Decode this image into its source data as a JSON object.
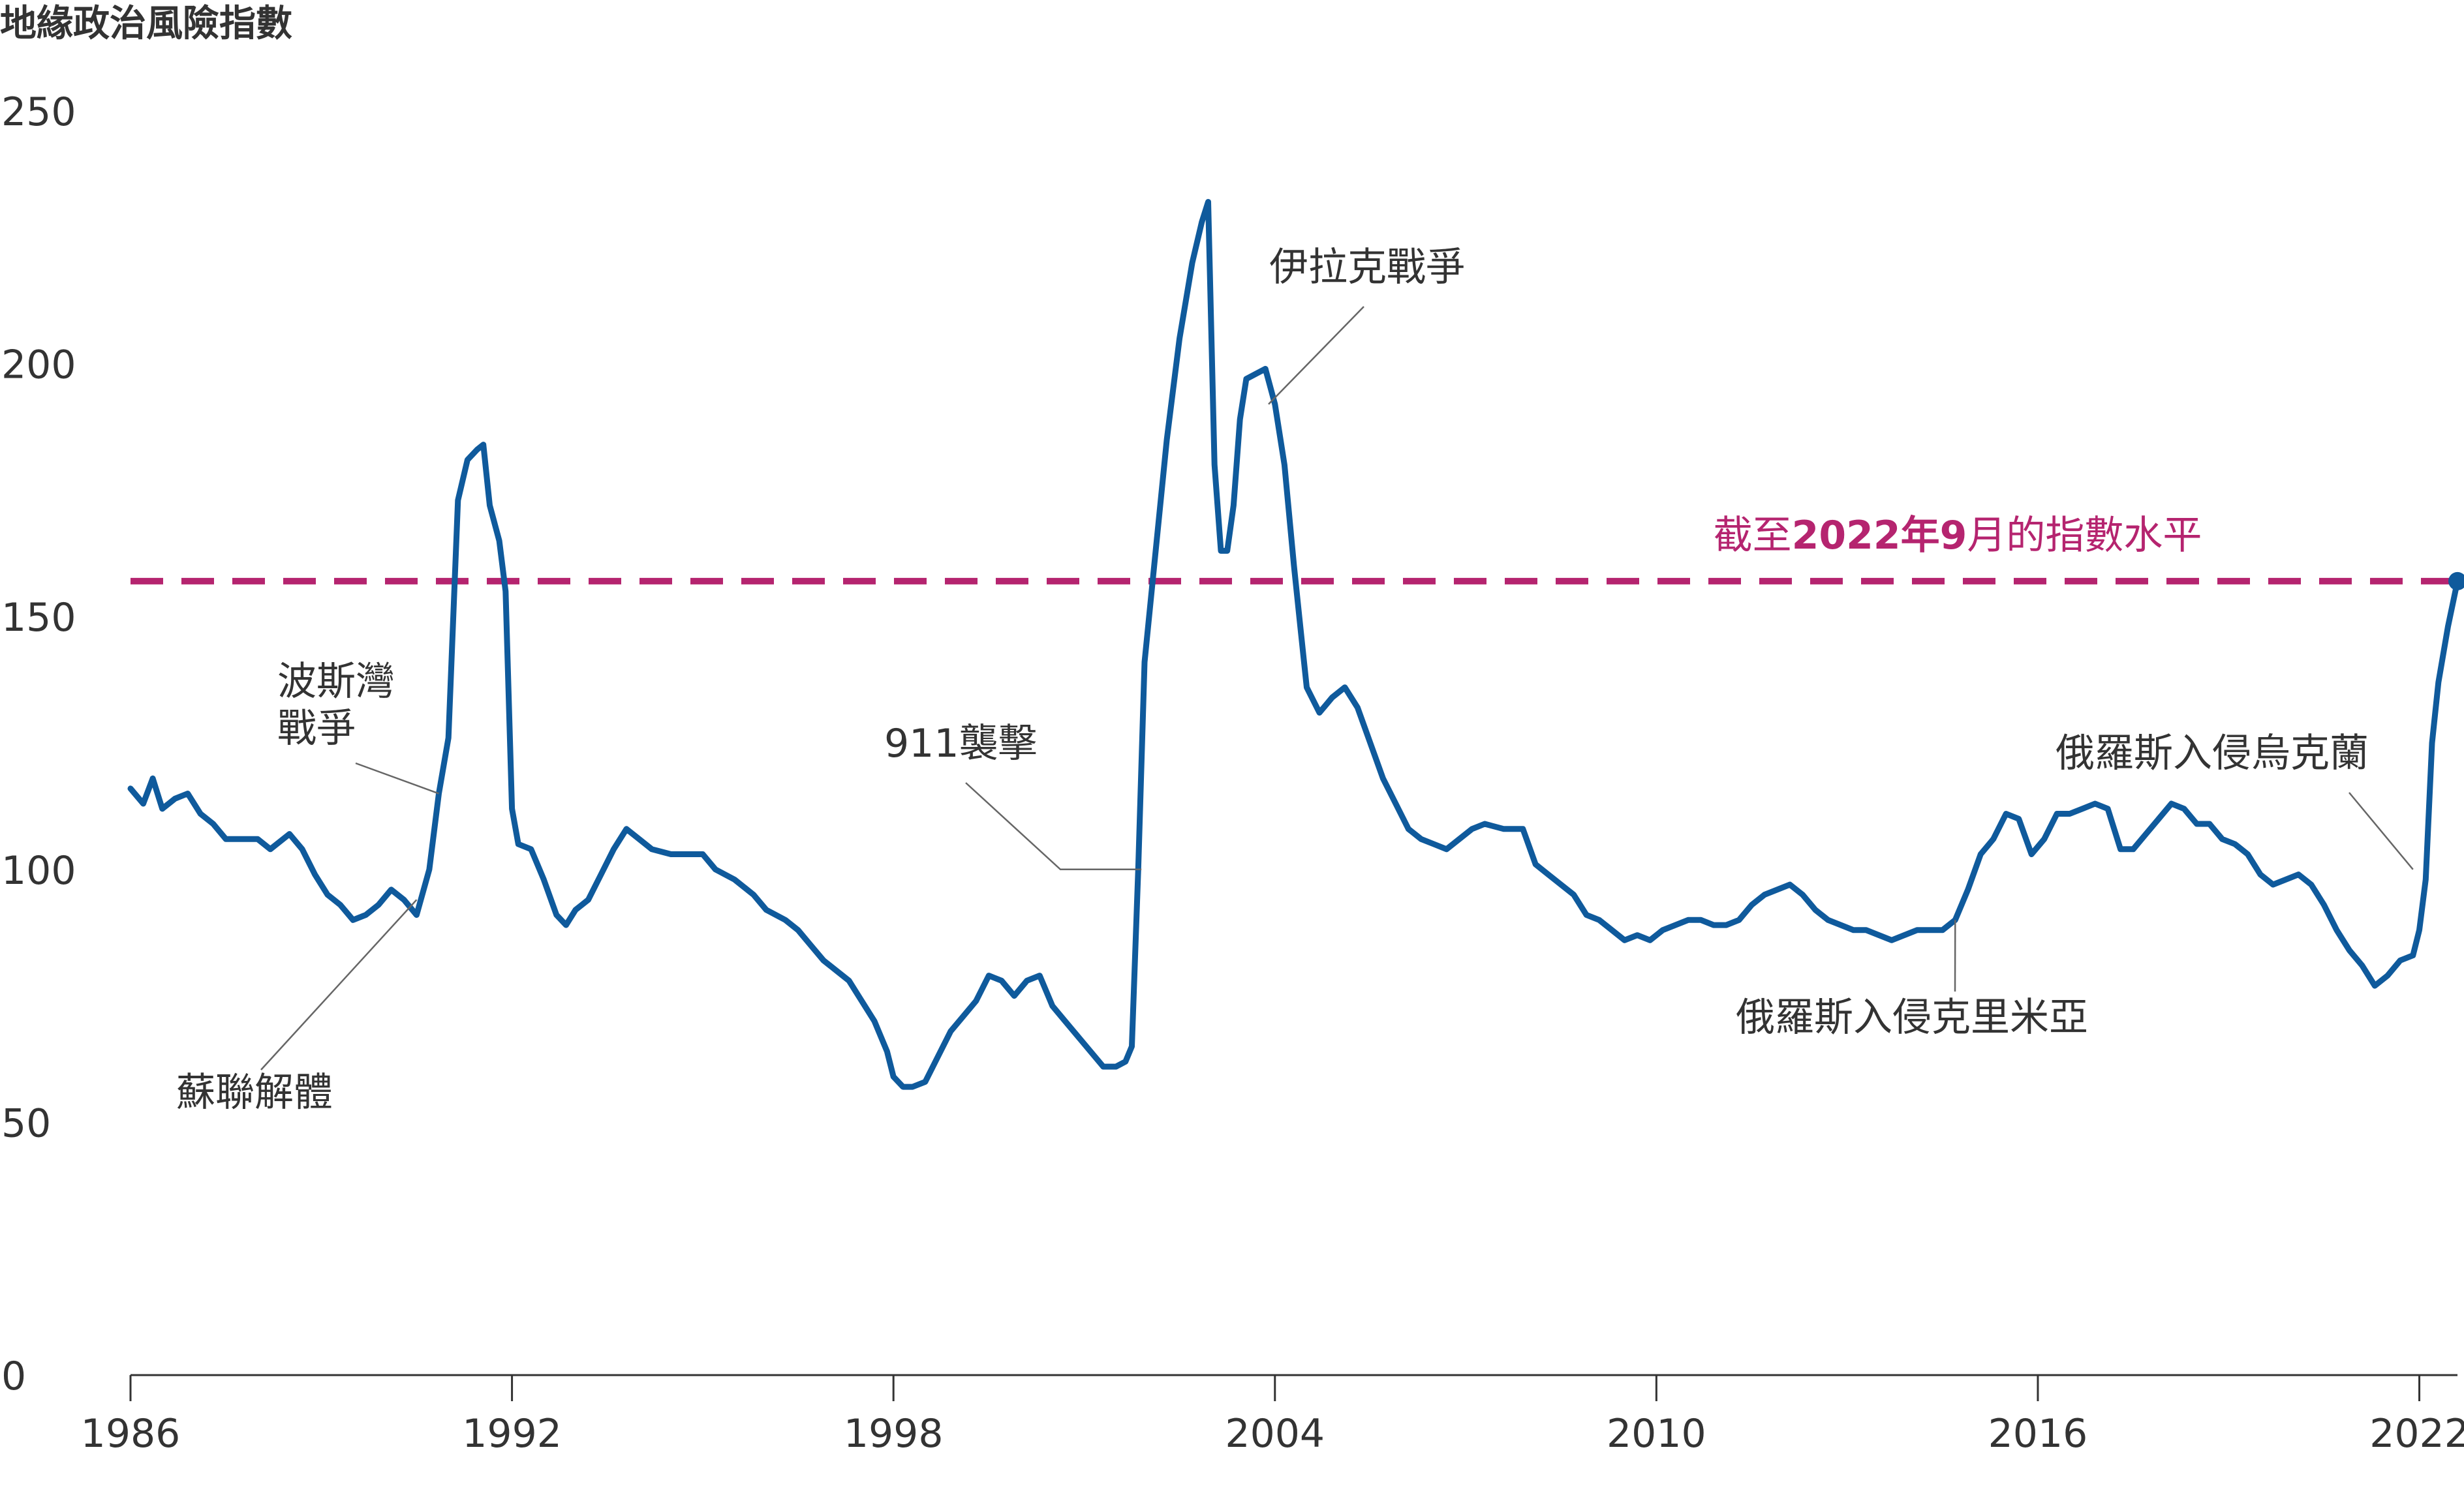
{
  "chart_data": {
    "type": "line",
    "title": "地緣政治風險指數",
    "xlabel": "",
    "ylabel": "",
    "xlim": [
      1986,
      2022.6
    ],
    "ylim": [
      0,
      250
    ],
    "x_ticks": [
      "1986",
      "1992",
      "1998",
      "2004",
      "2010",
      "2016",
      "2022"
    ],
    "y_ticks": [
      "0",
      "50",
      "100",
      "150",
      "200",
      "250"
    ],
    "series": [
      {
        "name": "地緣政治風險指數",
        "color": "#0f5a9c",
        "points": [
          [
            1986.0,
            116
          ],
          [
            1986.2,
            113
          ],
          [
            1986.35,
            118
          ],
          [
            1986.5,
            112
          ],
          [
            1986.7,
            114
          ],
          [
            1986.9,
            115
          ],
          [
            1987.1,
            111
          ],
          [
            1987.3,
            109
          ],
          [
            1987.5,
            106
          ],
          [
            1987.8,
            106
          ],
          [
            1988.0,
            106
          ],
          [
            1988.2,
            104
          ],
          [
            1988.5,
            107
          ],
          [
            1988.7,
            104
          ],
          [
            1988.9,
            99
          ],
          [
            1989.1,
            95
          ],
          [
            1989.3,
            93
          ],
          [
            1989.5,
            90
          ],
          [
            1989.7,
            91
          ],
          [
            1989.9,
            93
          ],
          [
            1990.1,
            96
          ],
          [
            1990.3,
            94
          ],
          [
            1990.5,
            91
          ],
          [
            1990.7,
            100
          ],
          [
            1990.85,
            115
          ],
          [
            1991.0,
            126
          ],
          [
            1991.15,
            173
          ],
          [
            1991.3,
            181
          ],
          [
            1991.45,
            183
          ],
          [
            1991.55,
            184
          ],
          [
            1991.65,
            172
          ],
          [
            1991.8,
            165
          ],
          [
            1991.9,
            155
          ],
          [
            1992.0,
            112
          ],
          [
            1992.1,
            105
          ],
          [
            1992.3,
            104
          ],
          [
            1992.5,
            98
          ],
          [
            1992.7,
            91
          ],
          [
            1992.85,
            89
          ],
          [
            1993.0,
            92
          ],
          [
            1993.2,
            94
          ],
          [
            1993.4,
            99
          ],
          [
            1993.6,
            104
          ],
          [
            1993.8,
            108
          ],
          [
            1994.0,
            106
          ],
          [
            1994.2,
            104
          ],
          [
            1994.5,
            103
          ],
          [
            1994.8,
            103
          ],
          [
            1995.0,
            103
          ],
          [
            1995.2,
            100
          ],
          [
            1995.5,
            98
          ],
          [
            1995.8,
            95
          ],
          [
            1996.0,
            92
          ],
          [
            1996.3,
            90
          ],
          [
            1996.5,
            88
          ],
          [
            1996.7,
            85
          ],
          [
            1996.9,
            82
          ],
          [
            1997.1,
            80
          ],
          [
            1997.3,
            78
          ],
          [
            1997.5,
            74
          ],
          [
            1997.7,
            70
          ],
          [
            1997.9,
            64
          ],
          [
            1998.0,
            59
          ],
          [
            1998.15,
            57
          ],
          [
            1998.3,
            57
          ],
          [
            1998.5,
            58
          ],
          [
            1998.7,
            63
          ],
          [
            1998.9,
            68
          ],
          [
            1999.1,
            71
          ],
          [
            1999.3,
            74
          ],
          [
            1999.5,
            79
          ],
          [
            1999.7,
            78
          ],
          [
            1999.9,
            75
          ],
          [
            2000.1,
            78
          ],
          [
            2000.3,
            79
          ],
          [
            2000.5,
            73
          ],
          [
            2000.7,
            70
          ],
          [
            2000.9,
            67
          ],
          [
            2001.1,
            64
          ],
          [
            2001.3,
            61
          ],
          [
            2001.5,
            61
          ],
          [
            2001.65,
            62
          ],
          [
            2001.75,
            65
          ],
          [
            2001.85,
            100
          ],
          [
            2001.95,
            141
          ],
          [
            2002.1,
            160
          ],
          [
            2002.3,
            185
          ],
          [
            2002.5,
            205
          ],
          [
            2002.7,
            220
          ],
          [
            2002.85,
            228
          ],
          [
            2002.95,
            232
          ],
          [
            2003.05,
            180
          ],
          [
            2003.15,
            163
          ],
          [
            2003.25,
            163
          ],
          [
            2003.35,
            172
          ],
          [
            2003.45,
            189
          ],
          [
            2003.55,
            197
          ],
          [
            2003.7,
            198
          ],
          [
            2003.85,
            199
          ],
          [
            2004.0,
            192
          ],
          [
            2004.15,
            180
          ],
          [
            2004.3,
            160
          ],
          [
            2004.4,
            148
          ],
          [
            2004.5,
            136
          ],
          [
            2004.7,
            131
          ],
          [
            2004.9,
            134
          ],
          [
            2005.1,
            136
          ],
          [
            2005.3,
            132
          ],
          [
            2005.5,
            125
          ],
          [
            2005.7,
            118
          ],
          [
            2005.9,
            113
          ],
          [
            2006.1,
            108
          ],
          [
            2006.3,
            106
          ],
          [
            2006.5,
            105
          ],
          [
            2006.7,
            104
          ],
          [
            2006.9,
            106
          ],
          [
            2007.1,
            108
          ],
          [
            2007.3,
            109
          ],
          [
            2007.6,
            108
          ],
          [
            2007.9,
            108
          ],
          [
            2008.1,
            101
          ],
          [
            2008.3,
            99
          ],
          [
            2008.5,
            97
          ],
          [
            2008.7,
            95
          ],
          [
            2008.9,
            91
          ],
          [
            2009.1,
            90
          ],
          [
            2009.3,
            88
          ],
          [
            2009.5,
            86
          ],
          [
            2009.7,
            87
          ],
          [
            2009.9,
            86
          ],
          [
            2010.1,
            88
          ],
          [
            2010.3,
            89
          ],
          [
            2010.5,
            90
          ],
          [
            2010.7,
            90
          ],
          [
            2010.9,
            89
          ],
          [
            2011.1,
            89
          ],
          [
            2011.3,
            90
          ],
          [
            2011.5,
            93
          ],
          [
            2011.7,
            95
          ],
          [
            2011.9,
            96
          ],
          [
            2012.1,
            97
          ],
          [
            2012.3,
            95
          ],
          [
            2012.5,
            92
          ],
          [
            2012.7,
            90
          ],
          [
            2012.9,
            89
          ],
          [
            2013.1,
            88
          ],
          [
            2013.3,
            88
          ],
          [
            2013.5,
            87
          ],
          [
            2013.7,
            86
          ],
          [
            2013.9,
            87
          ],
          [
            2014.1,
            88
          ],
          [
            2014.3,
            88
          ],
          [
            2014.5,
            88
          ],
          [
            2014.7,
            90
          ],
          [
            2014.9,
            96
          ],
          [
            2015.1,
            103
          ],
          [
            2015.3,
            106
          ],
          [
            2015.5,
            111
          ],
          [
            2015.7,
            110
          ],
          [
            2015.9,
            103
          ],
          [
            2016.1,
            106
          ],
          [
            2016.3,
            111
          ],
          [
            2016.5,
            111
          ],
          [
            2016.7,
            112
          ],
          [
            2016.9,
            113
          ],
          [
            2017.1,
            112
          ],
          [
            2017.3,
            104
          ],
          [
            2017.5,
            104
          ],
          [
            2017.7,
            107
          ],
          [
            2017.9,
            110
          ],
          [
            2018.1,
            113
          ],
          [
            2018.3,
            112
          ],
          [
            2018.5,
            109
          ],
          [
            2018.7,
            109
          ],
          [
            2018.9,
            106
          ],
          [
            2019.1,
            105
          ],
          [
            2019.3,
            103
          ],
          [
            2019.5,
            99
          ],
          [
            2019.7,
            97
          ],
          [
            2019.9,
            98
          ],
          [
            2020.1,
            99
          ],
          [
            2020.3,
            97
          ],
          [
            2020.5,
            93
          ],
          [
            2020.7,
            88
          ],
          [
            2020.9,
            84
          ],
          [
            2021.1,
            81
          ],
          [
            2021.3,
            77
          ],
          [
            2021.5,
            79
          ],
          [
            2021.7,
            82
          ],
          [
            2021.9,
            83
          ],
          [
            2022.0,
            88
          ],
          [
            2022.1,
            98
          ],
          [
            2022.2,
            125
          ],
          [
            2022.3,
            137
          ],
          [
            2022.45,
            148
          ],
          [
            2022.6,
            157
          ]
        ]
      }
    ],
    "reference_line": {
      "y": 157,
      "color": "#b5246f",
      "style": "dashed"
    },
    "reference_label": {
      "prefix": "截至",
      "bold_part": "2022年9",
      "suffix": "月的指數水平"
    },
    "annotations": [
      {
        "id": "gulf-war",
        "lines": [
          "波斯灣",
          "戰爭"
        ],
        "x": 1990.85,
        "y": 115
      },
      {
        "id": "ussr",
        "lines": [
          "蘇聯解體"
        ],
        "x": 1990.5,
        "y": 94
      },
      {
        "id": "911",
        "lines": [
          "911襲擊"
        ],
        "x": 2001.9,
        "y": 100
      },
      {
        "id": "iraq-war",
        "lines": [
          "伊拉克戰爭"
        ],
        "x": 2003.9,
        "y": 192
      },
      {
        "id": "crimea",
        "lines": [
          "俄羅斯入侵克里米亞"
        ],
        "x": 2014.7,
        "y": 90
      },
      {
        "id": "ukraine",
        "lines": [
          "俄羅斯入侵烏克蘭"
        ],
        "x": 2021.9,
        "y": 100
      }
    ]
  }
}
